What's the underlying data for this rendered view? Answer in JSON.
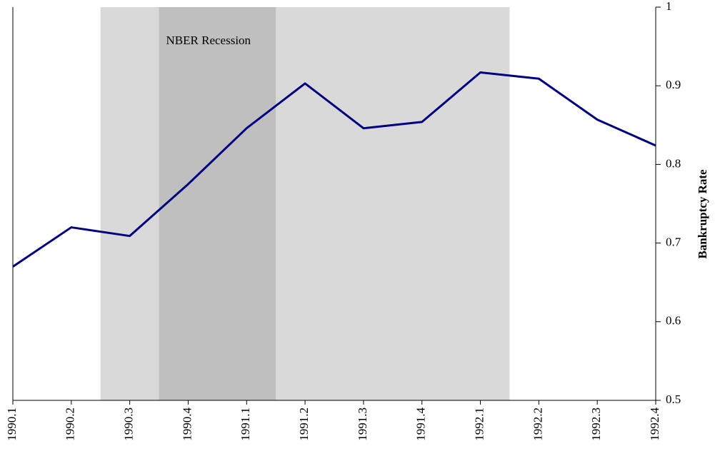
{
  "chart_data": {
    "type": "line",
    "y_axis_label": "Bankruptcy Rate",
    "categories": [
      "1990.1",
      "1990.2",
      "1990.3",
      "1990.4",
      "1991.1",
      "1991.2",
      "1991.3",
      "1991.4",
      "1992.1",
      "1992.2",
      "1992.3",
      "1992.4"
    ],
    "series": [
      {
        "color": "#000080",
        "values": [
          0.67,
          0.72,
          0.709,
          0.775,
          0.846,
          0.903,
          0.846,
          0.854,
          0.917,
          0.909,
          0.857,
          0.824
        ]
      }
    ],
    "ylim": [
      0.5,
      1
    ],
    "yticks": [
      0.5,
      0.6,
      0.7,
      0.8,
      0.9,
      1
    ],
    "y_axis_side": "right",
    "bands": [
      {
        "start": "1990.3",
        "end": "1992.1",
        "color": "#d9d9d9"
      },
      {
        "start": "1990.4",
        "end": "1991.1",
        "color": "#bfbfbf",
        "label": "NBER Recession"
      }
    ]
  }
}
